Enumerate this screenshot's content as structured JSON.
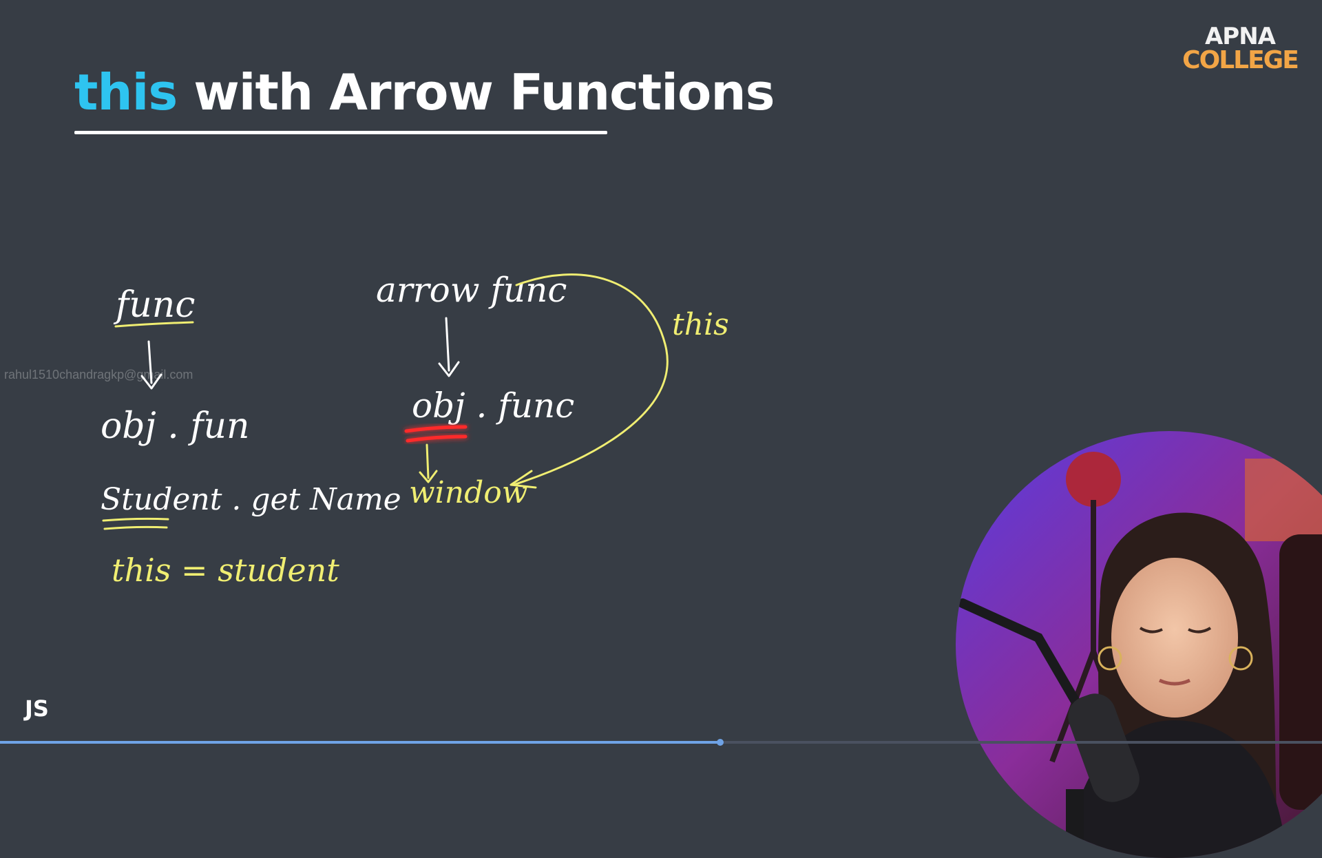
{
  "slide": {
    "title_keyword": "this",
    "title_rest": " with Arrow Functions",
    "logo_top": "APNA",
    "logo_bottom": "COLLEGE",
    "watermark": "rahul1510chandragkp@gmail.com",
    "footer_tag": "JS"
  },
  "notes": {
    "func": "func",
    "obj_fun": "obj . fun",
    "student_getname": "Student . get Name",
    "this_student": "this = student",
    "arrow_func": "arrow func",
    "obj_func": "obj . func",
    "window": "window",
    "this_label": "this"
  },
  "colors": {
    "background": "#373d45",
    "accent": "#2ec4f0",
    "ink_white": "#ffffff",
    "ink_yellow": "#f0ee72",
    "ink_red": "#ff2a2a",
    "logo_orange": "#f2a546"
  },
  "player": {
    "progress": 0.545
  }
}
